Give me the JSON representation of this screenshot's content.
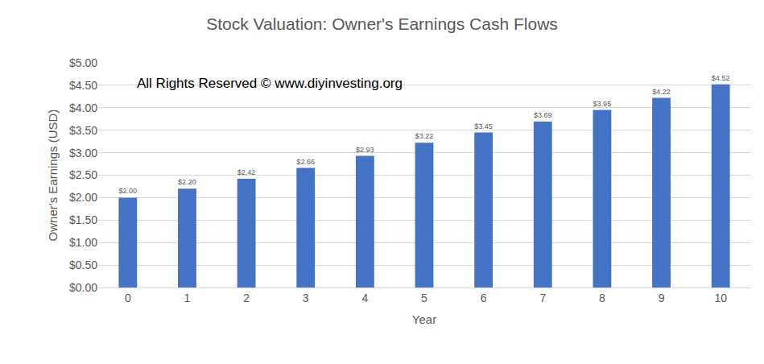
{
  "chart_data": {
    "type": "bar",
    "title": "Stock Valuation: Owner's Earnings Cash Flows",
    "annotation": "All Rights Reserved © www.diyinvesting.org",
    "x_label": "Year",
    "y_label": "Owner's Earnings (USD)",
    "categories": [
      "0",
      "1",
      "2",
      "3",
      "4",
      "5",
      "6",
      "7",
      "8",
      "9",
      "10"
    ],
    "values": [
      2.0,
      2.2,
      2.42,
      2.66,
      2.93,
      3.22,
      3.45,
      3.69,
      3.95,
      4.22,
      4.52
    ],
    "value_labels": [
      "$2.00",
      "$2.20",
      "$2.42",
      "$2.66",
      "$2.93",
      "$3.22",
      "$3.45",
      "$3.69",
      "$3.95",
      "$4.22",
      "$4.52"
    ],
    "data_labels": true,
    "color": "#4472c4",
    "ylim": [
      0,
      5
    ],
    "yticks": [
      {
        "value": 0,
        "label": "$0.00"
      },
      {
        "value": 0.5,
        "label": "$0.50"
      },
      {
        "value": 1,
        "label": "$1.00"
      },
      {
        "value": 1.5,
        "label": "$1.50"
      },
      {
        "value": 2,
        "label": "$2.00"
      },
      {
        "value": 2.5,
        "label": "$2.50"
      },
      {
        "value": 3,
        "label": "$3.00"
      },
      {
        "value": 3.5,
        "label": "$3.50"
      },
      {
        "value": 4,
        "label": "$4.00"
      },
      {
        "value": 4.5,
        "label": "$4.50"
      },
      {
        "value": 5,
        "label": "$5.00"
      }
    ],
    "grid": true
  }
}
